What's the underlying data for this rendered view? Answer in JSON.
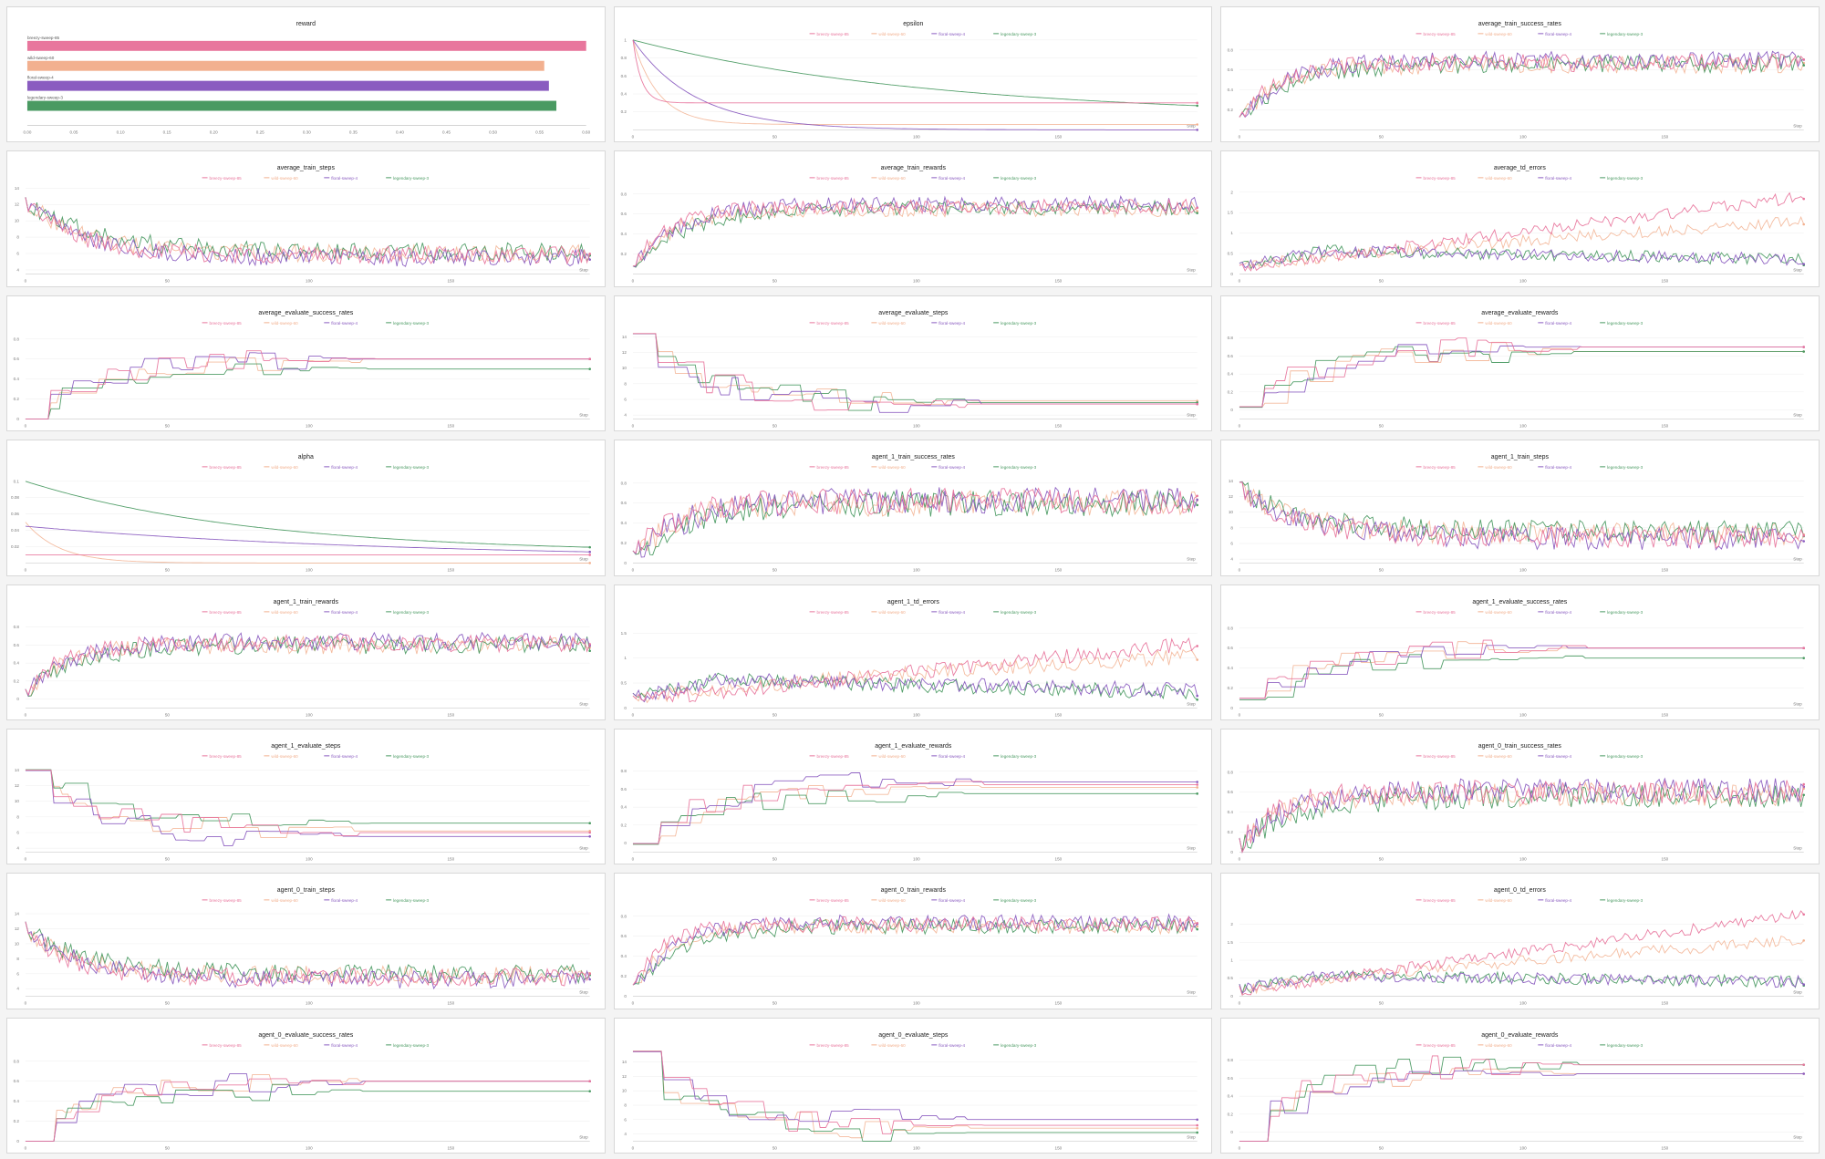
{
  "series": [
    {
      "name": "breezy-sweep-85",
      "color": "#e8769d"
    },
    {
      "name": "wild-sweep-60",
      "color": "#f2b08f"
    },
    {
      "name": "floral-sweep-4",
      "color": "#8a5cc0"
    },
    {
      "name": "legendary-sweep-3",
      "color": "#4a9a62"
    }
  ],
  "chart_data": [
    {
      "type": "bar",
      "title": "reward",
      "orientation": "horizontal",
      "categories": [
        "breezy-sweep-85",
        "wild-sweep-60",
        "floral-sweep-4",
        "legendary-sweep-3"
      ],
      "values": [
        0.6,
        0.555,
        0.56,
        0.568
      ],
      "xlim": [
        0,
        0.6
      ],
      "xticks": [
        "0.00",
        "0.05",
        "0.10",
        "0.15",
        "0.20",
        "0.25",
        "0.30",
        "0.35",
        "0.40",
        "0.45",
        "0.50",
        "0.55",
        "0.60"
      ]
    },
    {
      "type": "line",
      "title": "epsilon",
      "xlabel": "Step",
      "ylim": [
        0,
        1
      ],
      "yticks": [
        "0.2",
        "0.4",
        "0.6",
        "0.8",
        "1"
      ],
      "xticks": [
        "0",
        "50",
        "100",
        "150"
      ],
      "pattern": "epsilon",
      "params": [
        0.3,
        0.06,
        0.0,
        0.14
      ]
    },
    {
      "type": "line",
      "title": "average_train_success_rates",
      "xlabel": "Step",
      "ylim": [
        0,
        0.9
      ],
      "yticks": [
        "0.2",
        "0.4",
        "0.6",
        "0.8"
      ],
      "xticks": [
        "0",
        "50",
        "100",
        "150"
      ],
      "pattern": "rise",
      "params": {
        "start": 0.1,
        "end": 0.67,
        "tau": 12,
        "noise": 0.08,
        "plat": [
          0.67,
          0.65,
          0.7,
          0.66
        ]
      }
    },
    {
      "type": "line",
      "title": "average_train_steps",
      "xlabel": "Step",
      "ylim": [
        3.5,
        14.5
      ],
      "yticks": [
        "4",
        "6",
        "8",
        "10",
        "12",
        "14"
      ],
      "xticks": [
        "0",
        "50",
        "100",
        "150"
      ],
      "pattern": "fall",
      "params": {
        "start": 12.5,
        "end": 5.8,
        "tau": 18,
        "noise": 1.0,
        "plat": [
          5.8,
          6.0,
          5.5,
          6.2
        ]
      }
    },
    {
      "type": "line",
      "title": "average_train_rewards",
      "xlabel": "Step",
      "ylim": [
        0,
        0.9
      ],
      "yticks": [
        "0.2",
        "0.4",
        "0.6",
        "0.8"
      ],
      "xticks": [
        "0",
        "50",
        "100",
        "150"
      ],
      "pattern": "rise",
      "params": {
        "start": 0.05,
        "end": 0.67,
        "tau": 12,
        "noise": 0.07,
        "plat": [
          0.67,
          0.65,
          0.7,
          0.66
        ]
      }
    },
    {
      "type": "line",
      "title": "average_td_errors",
      "xlabel": "Step",
      "ylim": [
        0,
        2.2
      ],
      "yticks": [
        "0",
        "0.5",
        "1",
        "1.5",
        "2"
      ],
      "xticks": [
        "0",
        "50",
        "100",
        "150"
      ],
      "pattern": "td",
      "params": {
        "end": [
          1.9,
          1.1,
          0.35,
          0.35
        ],
        "noise": 0.12
      }
    },
    {
      "type": "line",
      "title": "average_evaluate_success_rates",
      "xlabel": "Step",
      "ylim": [
        0,
        0.9
      ],
      "yticks": [
        "0",
        "0.2",
        "0.4",
        "0.6",
        "0.8"
      ],
      "xticks": [
        "0",
        "50",
        "100",
        "150"
      ],
      "pattern": "step",
      "params": {
        "plat": [
          0.6,
          0.6,
          0.6,
          0.5
        ],
        "start": 0.0
      }
    },
    {
      "type": "line",
      "title": "average_evaluate_steps",
      "xlabel": "Step",
      "ylim": [
        3.5,
        15
      ],
      "yticks": [
        "4",
        "6",
        "8",
        "10",
        "12",
        "14"
      ],
      "xticks": [
        "0",
        "50",
        "100",
        "150"
      ],
      "pattern": "stepfall",
      "params": {
        "plat": [
          5.4,
          5.8,
          5.4,
          5.6
        ],
        "start": 14.5
      }
    },
    {
      "type": "line",
      "title": "average_evaluate_rewards",
      "xlabel": "Step",
      "ylim": [
        -0.1,
        0.9
      ],
      "yticks": [
        "0",
        "0.2",
        "0.4",
        "0.6",
        "0.8"
      ],
      "xticks": [
        "0",
        "50",
        "100",
        "150"
      ],
      "pattern": "steprise",
      "params": {
        "plat": [
          0.7,
          0.65,
          0.7,
          0.65
        ],
        "start": -0.05
      }
    },
    {
      "type": "line",
      "title": "alpha",
      "xlabel": "Step",
      "ylim": [
        0,
        0.11
      ],
      "yticks": [
        "0.02",
        "0.04",
        "0.06",
        "0.08",
        "0.1"
      ],
      "xticks": [
        "0",
        "50",
        "100",
        "150"
      ],
      "pattern": "alpha",
      "params": [
        0.01,
        0.0,
        0.005,
        0.012
      ]
    },
    {
      "type": "line",
      "title": "agent_1_train_success_rates",
      "xlabel": "Step",
      "ylim": [
        0,
        0.9
      ],
      "yticks": [
        "0",
        "0.2",
        "0.4",
        "0.6",
        "0.8"
      ],
      "xticks": [
        "0",
        "50",
        "100",
        "150"
      ],
      "pattern": "rise",
      "params": {
        "start": 0.05,
        "end": 0.62,
        "tau": 14,
        "noise": 0.12,
        "plat": [
          0.62,
          0.6,
          0.63,
          0.6
        ]
      }
    },
    {
      "type": "line",
      "title": "agent_1_train_steps",
      "xlabel": "Step",
      "ylim": [
        3.5,
        15
      ],
      "yticks": [
        "4",
        "6",
        "8",
        "10",
        "12",
        "14"
      ],
      "xticks": [
        "0",
        "50",
        "100",
        "150"
      ],
      "pattern": "fall",
      "params": {
        "start": 13,
        "end": 7,
        "tau": 20,
        "noise": 1.3,
        "plat": [
          6.8,
          7.2,
          6.6,
          7.5
        ]
      }
    },
    {
      "type": "line",
      "title": "agent_1_train_rewards",
      "xlabel": "Step",
      "ylim": [
        -0.1,
        0.9
      ],
      "yticks": [
        "0",
        "0.2",
        "0.4",
        "0.6",
        "0.8"
      ],
      "xticks": [
        "0",
        "50",
        "100",
        "150"
      ],
      "pattern": "rise",
      "params": {
        "start": 0.05,
        "end": 0.62,
        "tau": 12,
        "noise": 0.09,
        "plat": [
          0.62,
          0.6,
          0.64,
          0.6
        ]
      }
    },
    {
      "type": "line",
      "title": "agent_1_td_errors",
      "xlabel": "Step",
      "ylim": [
        0,
        1.8
      ],
      "yticks": [
        "0",
        "0.5",
        "1",
        "1.5"
      ],
      "xticks": [
        "0",
        "50",
        "100",
        "150"
      ],
      "pattern": "td",
      "params": {
        "end": [
          1.3,
          0.85,
          0.35,
          0.3
        ],
        "noise": 0.12
      }
    },
    {
      "type": "line",
      "title": "agent_1_evaluate_success_rates",
      "xlabel": "Step",
      "ylim": [
        0,
        0.9
      ],
      "yticks": [
        "0",
        "0.2",
        "0.4",
        "0.6",
        "0.8"
      ],
      "xticks": [
        "0",
        "50",
        "100",
        "150"
      ],
      "pattern": "step",
      "params": {
        "plat": [
          0.6,
          0.6,
          0.6,
          0.5
        ],
        "start": 0.0
      }
    },
    {
      "type": "line",
      "title": "agent_1_evaluate_steps",
      "xlabel": "Step",
      "ylim": [
        3.5,
        15
      ],
      "yticks": [
        "4",
        "6",
        "8",
        "10",
        "12",
        "14"
      ],
      "xticks": [
        "0",
        "50",
        "100",
        "150"
      ],
      "pattern": "stepfall",
      "params": {
        "plat": [
          6,
          6.2,
          5.5,
          7.2
        ],
        "start": 14.5
      }
    },
    {
      "type": "line",
      "title": "agent_1_evaluate_rewards",
      "xlabel": "Step",
      "ylim": [
        -0.1,
        0.9
      ],
      "yticks": [
        "0",
        "0.2",
        "0.4",
        "0.6",
        "0.8"
      ],
      "xticks": [
        "0",
        "50",
        "100",
        "150"
      ],
      "pattern": "steprise",
      "params": {
        "plat": [
          0.65,
          0.62,
          0.68,
          0.55
        ],
        "start": -0.05
      }
    },
    {
      "type": "line",
      "title": "agent_0_train_success_rates",
      "xlabel": "Step",
      "ylim": [
        0,
        0.9
      ],
      "yticks": [
        "0",
        "0.2",
        "0.4",
        "0.6",
        "0.8"
      ],
      "xticks": [
        "0",
        "50",
        "100",
        "150"
      ],
      "pattern": "rise",
      "params": {
        "start": 0.05,
        "end": 0.6,
        "tau": 13,
        "noise": 0.11,
        "plat": [
          0.6,
          0.58,
          0.62,
          0.56
        ]
      }
    },
    {
      "type": "line",
      "title": "agent_0_train_steps",
      "xlabel": "Step",
      "ylim": [
        3,
        15
      ],
      "yticks": [
        "4",
        "6",
        "8",
        "10",
        "12",
        "14"
      ],
      "xticks": [
        "0",
        "50",
        "100",
        "150"
      ],
      "pattern": "fall",
      "params": {
        "start": 12,
        "end": 5.5,
        "tau": 16,
        "noise": 1.1,
        "plat": [
          5.5,
          5.8,
          5.2,
          6.0
        ]
      }
    },
    {
      "type": "line",
      "title": "agent_0_train_rewards",
      "xlabel": "Step",
      "ylim": [
        0,
        0.9
      ],
      "yticks": [
        "0",
        "0.2",
        "0.4",
        "0.6",
        "0.8"
      ],
      "xticks": [
        "0",
        "50",
        "100",
        "150"
      ],
      "pattern": "rise",
      "params": {
        "start": 0.05,
        "end": 0.72,
        "tau": 10,
        "noise": 0.07,
        "plat": [
          0.72,
          0.7,
          0.74,
          0.7
        ]
      }
    },
    {
      "type": "line",
      "title": "agent_0_td_errors",
      "xlabel": "Step",
      "ylim": [
        0,
        2.5
      ],
      "yticks": [
        "0",
        "0.5",
        "1",
        "1.5",
        "2"
      ],
      "xticks": [
        "0",
        "50",
        "100",
        "150"
      ],
      "pattern": "td",
      "params": {
        "end": [
          2.3,
          1.4,
          0.4,
          0.4
        ],
        "noise": 0.13
      }
    },
    {
      "type": "line",
      "title": "agent_0_evaluate_success_rates",
      "xlabel": "Step",
      "ylim": [
        0,
        0.9
      ],
      "yticks": [
        "0",
        "0.2",
        "0.4",
        "0.6",
        "0.8"
      ],
      "xticks": [
        "0",
        "50",
        "100",
        "150"
      ],
      "pattern": "step",
      "params": {
        "plat": [
          0.6,
          0.6,
          0.6,
          0.5
        ],
        "start": 0.0
      }
    },
    {
      "type": "line",
      "title": "agent_0_evaluate_steps",
      "xlabel": "Step",
      "ylim": [
        3,
        15.5
      ],
      "yticks": [
        "4",
        "6",
        "8",
        "10",
        "12",
        "14"
      ],
      "xticks": [
        "0",
        "50",
        "100",
        "150"
      ],
      "pattern": "stepfall",
      "params": {
        "plat": [
          5.2,
          4.8,
          6.0,
          4.2
        ],
        "start": 14.5
      }
    },
    {
      "type": "line",
      "title": "agent_0_evaluate_rewards",
      "xlabel": "Step",
      "ylim": [
        -0.1,
        0.9
      ],
      "yticks": [
        "0",
        "0.2",
        "0.4",
        "0.6",
        "0.8"
      ],
      "xticks": [
        "0",
        "50",
        "100",
        "150"
      ],
      "pattern": "steprise",
      "params": {
        "plat": [
          0.75,
          0.65,
          0.65,
          0.75
        ],
        "start": -0.05
      }
    }
  ]
}
